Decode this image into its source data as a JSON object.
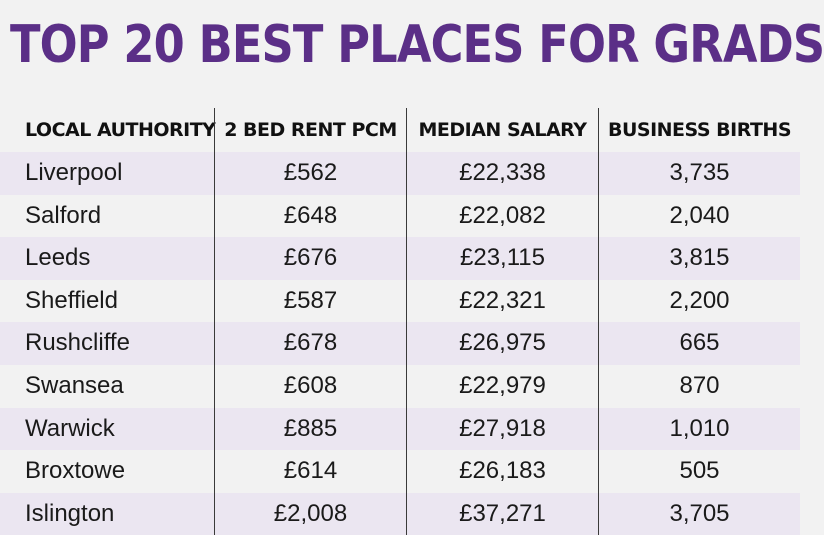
{
  "title": "TOP 20 BEST PLACES FOR GRADS",
  "headers": [
    "LOCAL AUTHORITY",
    "2 BED RENT PCM",
    "MEDIAN SALARY",
    "BUSINESS BIRTHS"
  ],
  "rows": [
    [
      "Liverpool",
      "£562",
      "£22,338",
      "3,735"
    ],
    [
      "Salford",
      "£648",
      "£22,082",
      "2,040"
    ],
    [
      "Leeds",
      "£676",
      "£23,115",
      "3,815"
    ],
    [
      "Sheffield",
      "£587",
      "£22,321",
      "2,200"
    ],
    [
      "Rushcliffe",
      "£678",
      "£26,975",
      "665"
    ],
    [
      "Swansea",
      "£608",
      "£22,979",
      "870"
    ],
    [
      "Warwick",
      "£885",
      "£27,918",
      "1,010"
    ],
    [
      "Broxtowe",
      "£614",
      "£26,183",
      "505"
    ],
    [
      "Islington",
      "£2,008",
      "£37,271",
      "3,705"
    ]
  ],
  "colors": {
    "title": "#5b2f87",
    "row_alt": "#ebe6f1",
    "background": "#f2f2f2",
    "text": "#1a1a1a"
  }
}
